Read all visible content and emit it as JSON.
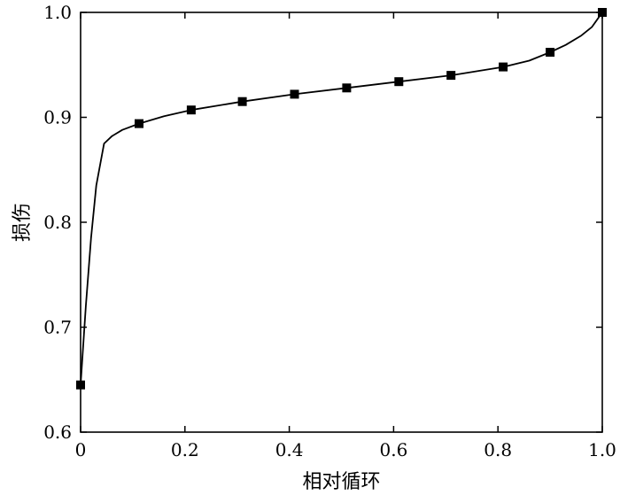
{
  "chart_data": {
    "type": "line",
    "title": "",
    "xlabel": "相对循环",
    "ylabel": "损伤",
    "xlim": [
      0,
      1.0
    ],
    "ylim": [
      0.6,
      1.0
    ],
    "grid": false,
    "legend": "none",
    "xticks": [
      {
        "value": 0.0,
        "label": "0"
      },
      {
        "value": 0.2,
        "label": "0.2"
      },
      {
        "value": 0.4,
        "label": "0.4"
      },
      {
        "value": 0.6,
        "label": "0.6"
      },
      {
        "value": 0.8,
        "label": "0.8"
      },
      {
        "value": 1.0,
        "label": "1.0"
      }
    ],
    "yticks": [
      {
        "value": 0.6,
        "label": "0.6"
      },
      {
        "value": 0.7,
        "label": "0.7"
      },
      {
        "value": 0.8,
        "label": "0.8"
      },
      {
        "value": 0.9,
        "label": "0.9"
      },
      {
        "value": 1.0,
        "label": "1.0"
      }
    ],
    "series": [
      {
        "line": {
          "x": [
            0.0,
            0.01,
            0.02,
            0.03,
            0.045,
            0.06,
            0.08,
            0.112,
            0.16,
            0.212,
            0.31,
            0.41,
            0.51,
            0.61,
            0.71,
            0.81,
            0.86,
            0.9,
            0.93,
            0.96,
            0.98,
            0.99,
            1.0
          ],
          "y": [
            0.645,
            0.72,
            0.785,
            0.835,
            0.875,
            0.882,
            0.888,
            0.894,
            0.901,
            0.907,
            0.915,
            0.922,
            0.928,
            0.934,
            0.94,
            0.948,
            0.954,
            0.962,
            0.969,
            0.978,
            0.986,
            0.993,
            1.0
          ]
        },
        "markers": {
          "shape": "square",
          "x": [
            0.0,
            0.112,
            0.212,
            0.31,
            0.41,
            0.51,
            0.61,
            0.71,
            0.81,
            0.9,
            1.0
          ],
          "y": [
            0.645,
            0.894,
            0.907,
            0.915,
            0.922,
            0.928,
            0.934,
            0.94,
            0.948,
            0.962,
            1.0
          ]
        }
      }
    ],
    "colors": {
      "line": "#000000",
      "marker": "#000000",
      "axis": "#000000",
      "background": "#ffffff"
    }
  }
}
